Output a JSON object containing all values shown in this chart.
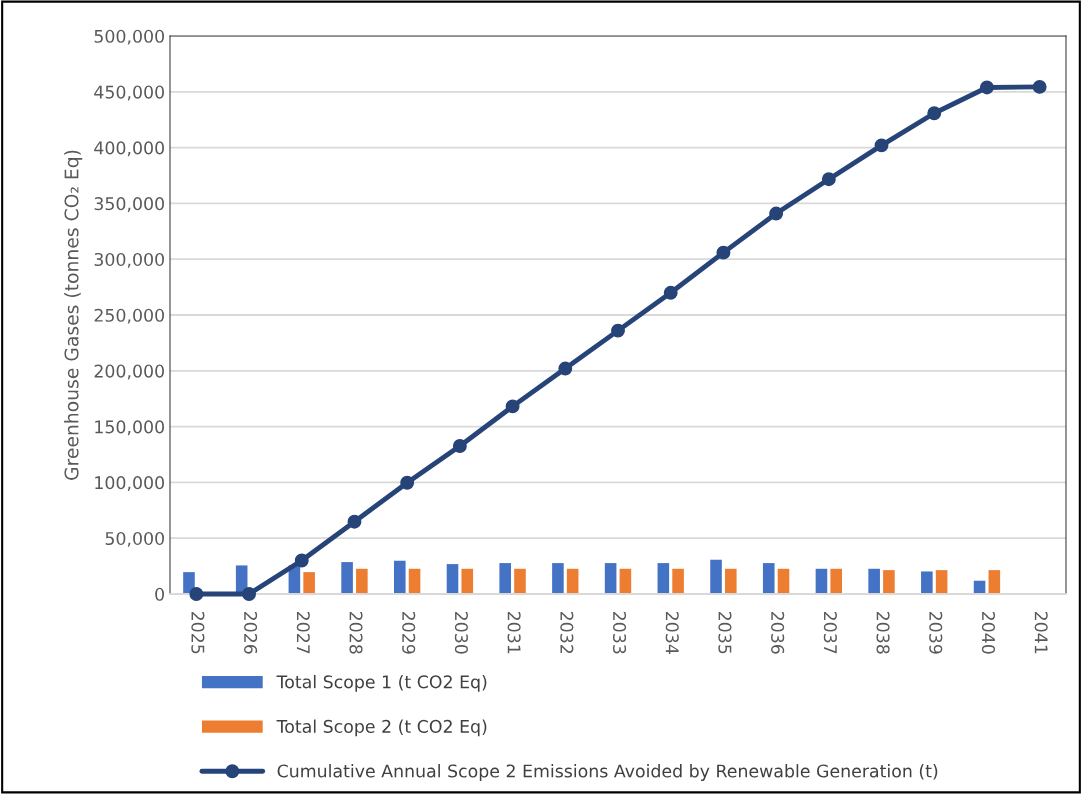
{
  "chart_data": {
    "type": "bar",
    "ylabel": "Greenhouse Gases (tonnes CO₂ Eq)",
    "categories": [
      "2025",
      "2026",
      "2027",
      "2028",
      "2029",
      "2030",
      "2031",
      "2032",
      "2033",
      "2034",
      "2035",
      "2036",
      "2037",
      "2038",
      "2039",
      "2040",
      "2041"
    ],
    "series": [
      {
        "name": "Total Scope 1 (t CO2 Eq)",
        "color": "#4472c4",
        "values": [
          19600,
          25600,
          25500,
          28600,
          29800,
          26800,
          27700,
          27700,
          27700,
          27700,
          30700,
          27700,
          22600,
          22600,
          20200,
          11900,
          null
        ]
      },
      {
        "name": "Total Scope 2 (t CO2 Eq)",
        "color": "#ed7d31",
        "values": [
          null,
          null,
          19600,
          22600,
          22600,
          22600,
          22600,
          22600,
          22600,
          22600,
          22600,
          22600,
          22600,
          21400,
          21400,
          21400,
          null
        ]
      },
      {
        "name": "Cumulative Annual Scope 2 Emissions Avoided by Renewable Generation (t)",
        "type": "line",
        "color": "#264478",
        "marker": "circle",
        "values": [
          0,
          0,
          30000,
          64800,
          99700,
          132600,
          168100,
          202000,
          236000,
          269900,
          305900,
          340900,
          371700,
          402000,
          430800,
          453900,
          454400
        ]
      }
    ],
    "ylim": [
      0,
      500000
    ],
    "yticks": [
      {
        "value": 0,
        "label": "0"
      },
      {
        "value": 50000,
        "label": "50,000"
      },
      {
        "value": 100000,
        "label": "100,000"
      },
      {
        "value": 150000,
        "label": "150,000"
      },
      {
        "value": 200000,
        "label": "200,000"
      },
      {
        "value": 250000,
        "label": "250,000"
      },
      {
        "value": 300000,
        "label": "300,000"
      },
      {
        "value": 350000,
        "label": "350,000"
      },
      {
        "value": 400000,
        "label": "400,000"
      },
      {
        "value": 450000,
        "label": "450,000"
      },
      {
        "value": 500000,
        "label": "500,000"
      }
    ],
    "grid": "y",
    "legend": "bottom"
  }
}
